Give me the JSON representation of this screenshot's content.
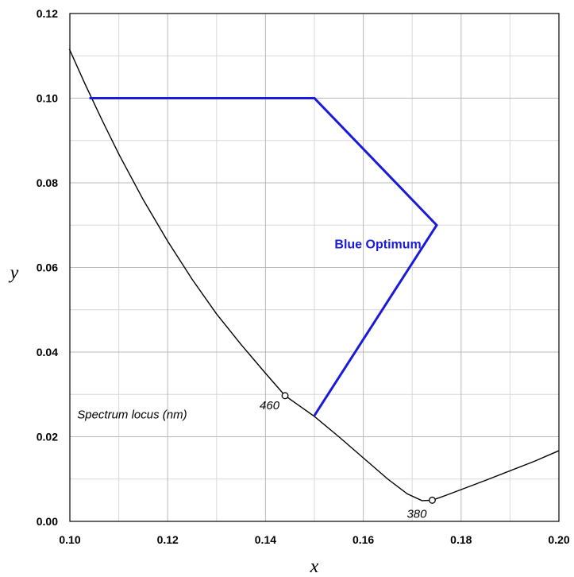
{
  "chart_data": {
    "type": "line",
    "xlabel": "x",
    "ylabel": "y",
    "xlim": [
      0.1,
      0.2
    ],
    "ylim": [
      0.0,
      0.12
    ],
    "x_ticks": [
      "0.10",
      "0.12",
      "0.14",
      "0.16",
      "0.18",
      "0.20"
    ],
    "y_ticks": [
      "0.00",
      "0.02",
      "0.04",
      "0.06",
      "0.08",
      "0.10",
      "0.12"
    ],
    "minor_x_step": 0.01,
    "minor_y_step": 0.01,
    "grid": true,
    "series": [
      {
        "name": "Spectrum locus (nm)",
        "color": "#000000",
        "points": [
          [
            0.0999,
            0.1116
          ],
          [
            0.103,
            0.1036
          ],
          [
            0.1065,
            0.095
          ],
          [
            0.11,
            0.0868
          ],
          [
            0.115,
            0.076
          ],
          [
            0.12,
            0.0662
          ],
          [
            0.125,
            0.0572
          ],
          [
            0.13,
            0.049
          ],
          [
            0.135,
            0.0418
          ],
          [
            0.14,
            0.035
          ],
          [
            0.144,
            0.0297
          ],
          [
            0.15,
            0.0248
          ],
          [
            0.155,
            0.02
          ],
          [
            0.16,
            0.015
          ],
          [
            0.165,
            0.01
          ],
          [
            0.169,
            0.0065
          ],
          [
            0.172,
            0.0049
          ],
          [
            0.1741,
            0.005
          ],
          [
            0.177,
            0.0062
          ],
          [
            0.185,
            0.0097
          ],
          [
            0.195,
            0.0142
          ],
          [
            0.2,
            0.0167
          ]
        ]
      },
      {
        "name": "Blue Optimum",
        "color": "#1a1adb",
        "points": [
          [
            0.104,
            0.1
          ],
          [
            0.15,
            0.1
          ],
          [
            0.175,
            0.07
          ],
          [
            0.15,
            0.025
          ]
        ]
      }
    ],
    "markers": [
      {
        "label": "460",
        "x": 0.144,
        "y": 0.0297
      },
      {
        "label": "380",
        "x": 0.1741,
        "y": 0.005
      }
    ],
    "annotations": [
      {
        "text": "Spectrum locus (nm)",
        "x": 0.1015,
        "y": 0.0243
      },
      {
        "text": "Blue Optimum",
        "x": 0.163,
        "y": 0.0645,
        "color": "#1a1adb"
      }
    ]
  }
}
